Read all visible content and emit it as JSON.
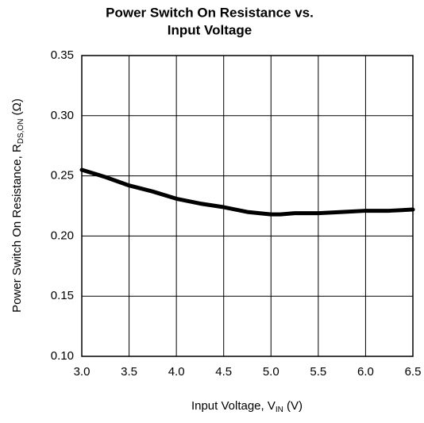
{
  "chart_data": {
    "type": "line",
    "title": [
      "Power Switch On Resistance vs.",
      "Input Voltage"
    ],
    "xlabel": [
      "Input Voltage, V",
      "IN",
      " (V)"
    ],
    "ylabel": [
      "Power Switch On Resistance, R",
      "DS,ON",
      " (Ω)"
    ],
    "x": [
      3.0,
      3.25,
      3.5,
      3.75,
      4.0,
      4.25,
      4.5,
      4.75,
      5.0,
      5.1,
      5.25,
      5.5,
      5.75,
      6.0,
      6.25,
      6.5
    ],
    "series": [
      {
        "name": "RDS,ON",
        "color": "#000000",
        "values": [
          0.255,
          0.249,
          0.242,
          0.237,
          0.231,
          0.227,
          0.224,
          0.22,
          0.218,
          0.218,
          0.219,
          0.219,
          0.22,
          0.221,
          0.221,
          0.222
        ]
      }
    ],
    "xlim": [
      3.0,
      6.5
    ],
    "xticks": [
      {
        "value": 3.0,
        "label": "3.0"
      },
      3.5,
      {
        "value": 4.0,
        "label": "4.0"
      },
      4.5,
      {
        "value": 5.0,
        "label": "5.0"
      },
      5.5,
      {
        "value": 6.0,
        "label": "6.0"
      },
      6.5
    ],
    "ylim": [
      0.1,
      0.35
    ],
    "yticks": [
      {
        "value": 0.1,
        "label": "0.10"
      },
      0.15,
      {
        "value": 0.2,
        "label": "0.20"
      },
      0.25,
      {
        "value": 0.3,
        "label": "0.30"
      },
      0.35
    ],
    "grid": true
  }
}
